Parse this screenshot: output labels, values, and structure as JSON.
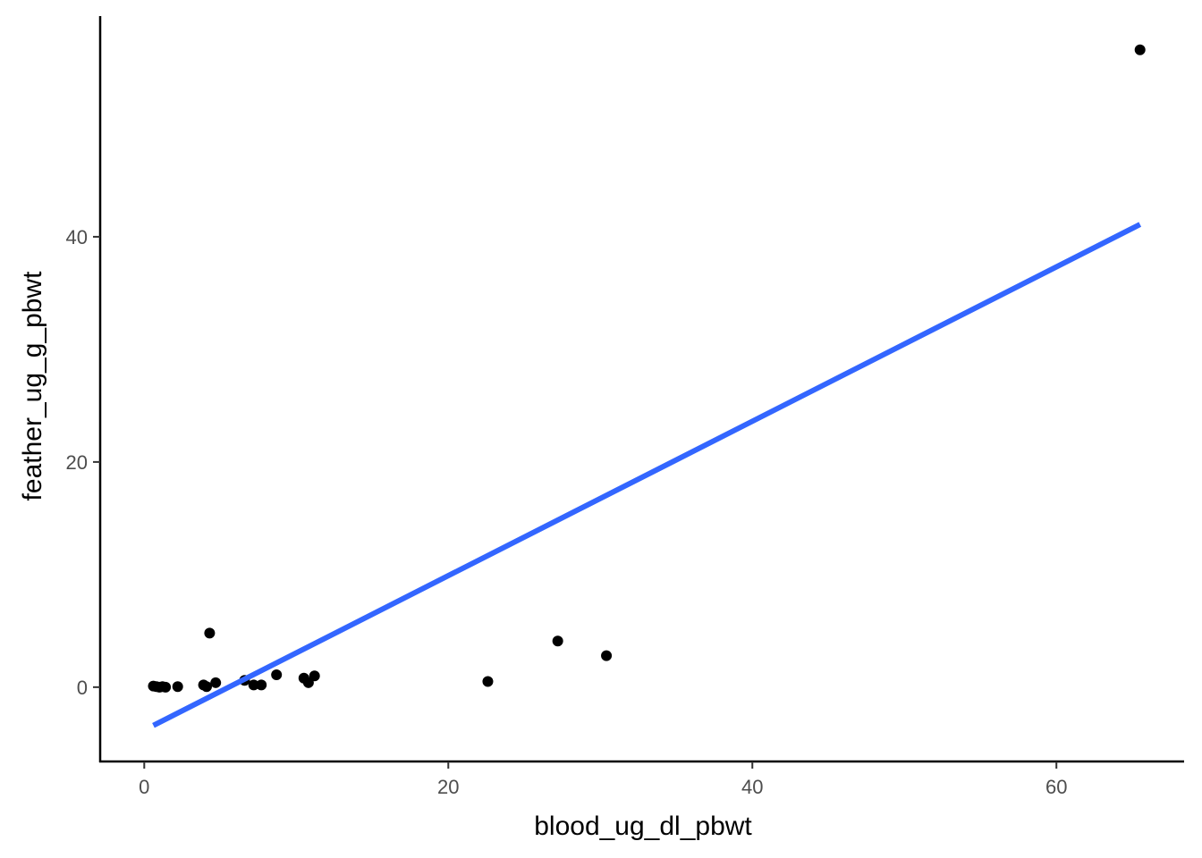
{
  "chart_data": {
    "type": "scatter",
    "xlabel": "blood_ug_dl_pbwt",
    "ylabel": "feather_ug_g_pbwt",
    "xlim": [
      -2.9,
      68.4
    ],
    "ylim": [
      -6.6,
      59.6
    ],
    "x_ticks": [
      0,
      20,
      40,
      60
    ],
    "y_ticks": [
      0,
      20,
      40
    ],
    "grid": false,
    "legend": "none",
    "points": [
      {
        "x": 0.6,
        "y": 0.1
      },
      {
        "x": 0.8,
        "y": 0.05
      },
      {
        "x": 1.0,
        "y": 0.0
      },
      {
        "x": 1.2,
        "y": 0.05
      },
      {
        "x": 1.4,
        "y": 0.0
      },
      {
        "x": 2.2,
        "y": 0.05
      },
      {
        "x": 3.9,
        "y": 0.2
      },
      {
        "x": 4.1,
        "y": 0.05
      },
      {
        "x": 4.3,
        "y": 4.8
      },
      {
        "x": 4.7,
        "y": 0.4
      },
      {
        "x": 6.6,
        "y": 0.6
      },
      {
        "x": 7.2,
        "y": 0.2
      },
      {
        "x": 7.7,
        "y": 0.2
      },
      {
        "x": 8.7,
        "y": 1.1
      },
      {
        "x": 10.5,
        "y": 0.8
      },
      {
        "x": 10.8,
        "y": 0.4
      },
      {
        "x": 11.2,
        "y": 1.0
      },
      {
        "x": 22.6,
        "y": 0.5
      },
      {
        "x": 27.2,
        "y": 4.1
      },
      {
        "x": 30.4,
        "y": 2.8
      },
      {
        "x": 65.5,
        "y": 56.6
      }
    ],
    "fit_line": {
      "x": [
        0.6,
        65.5
      ],
      "y": [
        -3.4,
        41.1
      ]
    },
    "colors": {
      "points": "#000000",
      "fit_line": "#3366FF",
      "axis": "#000000",
      "tick_label": "#4d4d4d"
    }
  }
}
